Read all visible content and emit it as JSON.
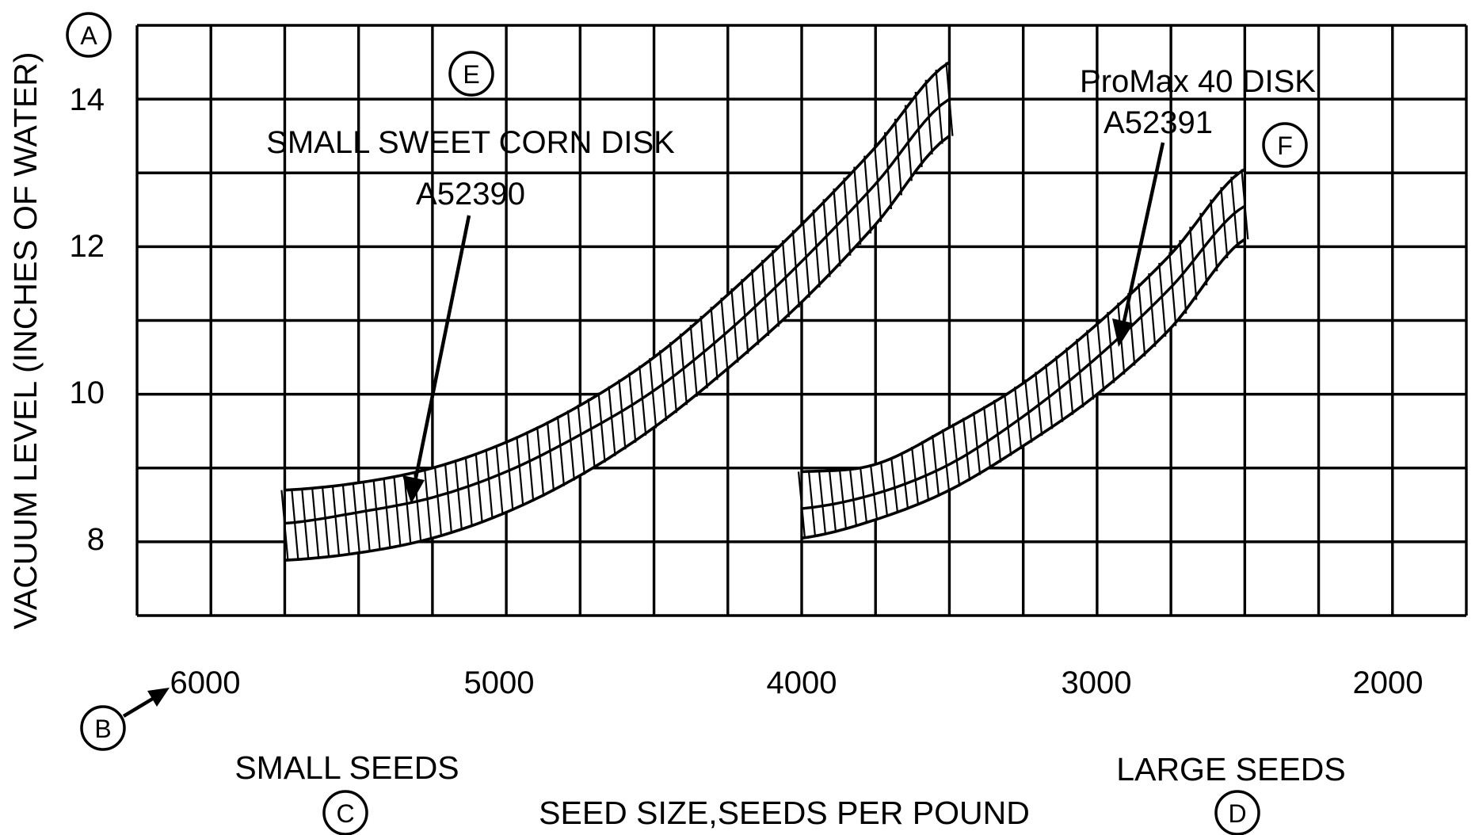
{
  "chart_data": {
    "type": "area",
    "ylabel": "VACUUM LEVEL (INCHES OF WATER)",
    "xlabel": "SEED SIZE,SEEDS PER POUND",
    "x_reversed": true,
    "xlim": [
      6250,
      1750
    ],
    "ylim": [
      7,
      15
    ],
    "x_ticks": [
      "6000",
      "5000",
      "4000",
      "3000",
      "2000"
    ],
    "y_ticks": [
      "8",
      "10",
      "12",
      "14"
    ],
    "grid": true,
    "x_note_left": "SMALL SEEDS",
    "x_note_right": "LARGE SEEDS",
    "series": [
      {
        "label": "SMALL SWEET CORN DISK",
        "part": "A52390",
        "x": [
          5750,
          5500,
          5250,
          5000,
          4750,
          4500,
          4250,
          4000,
          3750,
          3500
        ],
        "lower": [
          7.75,
          7.85,
          8.05,
          8.4,
          8.9,
          9.55,
          10.35,
          11.25,
          12.3,
          13.5
        ],
        "center": [
          8.25,
          8.4,
          8.6,
          8.95,
          9.45,
          10.05,
          10.85,
          11.8,
          12.85,
          14.0
        ],
        "upper": [
          8.7,
          8.8,
          9.0,
          9.35,
          9.85,
          10.5,
          11.35,
          12.3,
          13.35,
          14.5
        ]
      },
      {
        "label": "ProMax 40 DISK",
        "part": "A52391",
        "x": [
          4000,
          3750,
          3500,
          3250,
          3000,
          2750,
          2500
        ],
        "lower": [
          8.05,
          8.3,
          8.7,
          9.3,
          10.0,
          10.9,
          12.1
        ],
        "center": [
          8.45,
          8.65,
          9.05,
          9.7,
          10.5,
          11.45,
          12.55
        ],
        "upper": [
          8.95,
          9.05,
          9.55,
          10.15,
          10.95,
          11.9,
          13.05
        ]
      }
    ],
    "callouts": [
      "A",
      "B",
      "C",
      "D",
      "E",
      "F"
    ]
  }
}
